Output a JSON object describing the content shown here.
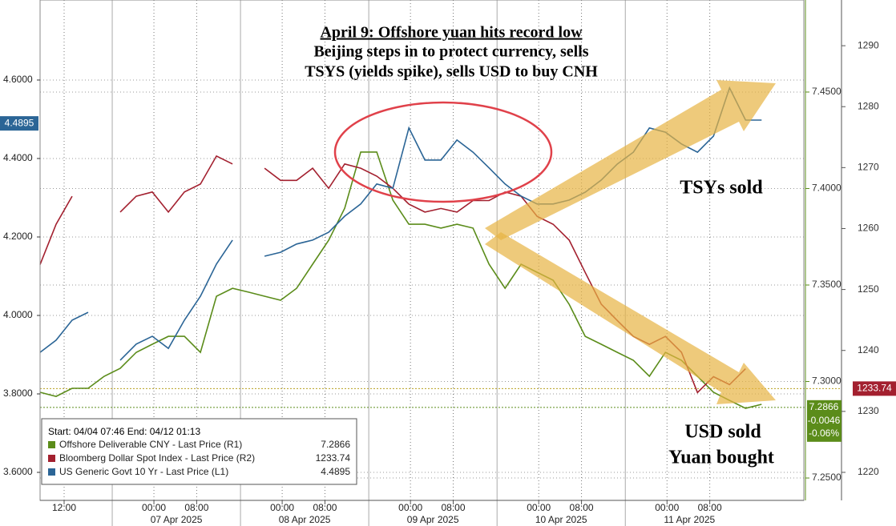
{
  "chart_data": {
    "type": "line",
    "annotations": {
      "title_lines": [
        "April 9: Offshore yuan hits record low",
        "Beijing steps in to protect currency, sells",
        "TSYS (yields spike), sells USD to buy CNH"
      ],
      "tsys": "TSYs sold",
      "usd": "USD sold",
      "yuan": "Yuan bought"
    },
    "legend_header": "Start: 04/04 07:46 End: 04/12 01:13",
    "change": -0.0046,
    "change_pct": {
      "value": -0.06,
      "label": "-0.06%"
    },
    "x": [
      -4.5,
      -1.5,
      1.5,
      4.5,
      7.5,
      10.5,
      13.5,
      16.5,
      19.5,
      22.5,
      25.5,
      28.5,
      31.5,
      34.5,
      37.5,
      40.5,
      43.5,
      46.5,
      49.5,
      52.5,
      55.5,
      58.5,
      61.5,
      64.5,
      67.5,
      70.5,
      73.5,
      76.5,
      79.5,
      82.5,
      85.5,
      88.5,
      91.5,
      94.5,
      97.5,
      100.5,
      103.5,
      106.5,
      109.5,
      112.5,
      115.5,
      118.5,
      121.5,
      124.5,
      127.5,
      130.5
    ],
    "xlim": [
      -4.5,
      138.4
    ],
    "xticks": [
      {
        "value": 0,
        "label": "12:00"
      },
      {
        "value": 16.8,
        "label": "00:00"
      },
      {
        "value": 24.8,
        "label": "08:00"
      },
      {
        "value": 40.8,
        "label": "00:00"
      },
      {
        "value": 48.8,
        "label": "08:00"
      },
      {
        "value": 64.8,
        "label": "00:00"
      },
      {
        "value": 72.8,
        "label": "08:00"
      },
      {
        "value": 88.8,
        "label": "00:00"
      },
      {
        "value": 96.8,
        "label": "08:00"
      },
      {
        "value": 112.8,
        "label": "00:00"
      },
      {
        "value": 120.8,
        "label": "08:00"
      }
    ],
    "dateticks": [
      {
        "value": 21,
        "label": "07 Apr 2025"
      },
      {
        "value": 45,
        "label": "08 Apr 2025"
      },
      {
        "value": 69,
        "label": "09 Apr 2025"
      },
      {
        "value": 93,
        "label": "10 Apr 2025"
      },
      {
        "value": 117,
        "label": "11 Apr 2025"
      }
    ],
    "ylim": [
      3.5286,
      4.804
    ],
    "yticks": [
      {
        "value": 3.6,
        "label": "3.6000"
      },
      {
        "value": 3.8,
        "label": "3.8000"
      },
      {
        "value": 4.0,
        "label": "4.0000"
      },
      {
        "value": 4.2,
        "label": "4.2000"
      },
      {
        "value": 4.4,
        "label": "4.4000"
      },
      {
        "value": 4.6,
        "label": "4.6000"
      }
    ],
    "y2lim": [
      7.2384,
      7.4977
    ],
    "y2ticks": [
      {
        "value": 7.25,
        "label": "7.2500"
      },
      {
        "value": 7.3,
        "label": "7.3000"
      },
      {
        "value": 7.35,
        "label": "7.3500"
      },
      {
        "value": 7.4,
        "label": "7.4000"
      },
      {
        "value": 7.45,
        "label": "7.4500"
      }
    ],
    "y3lim": [
      1215.4,
      1297.5
    ],
    "y3ticks": [
      1220,
      1230,
      1240,
      1250,
      1260,
      1270,
      1280,
      1290
    ],
    "grid": true,
    "series": [
      {
        "name": "Offshore Deliverable CNY - Last Price (R1)",
        "color": "#5b8c1a",
        "axis": "y2",
        "last": 7.2866,
        "values": [
          7.2944,
          7.2923,
          7.2965,
          7.2965,
          7.3027,
          7.3068,
          7.3151,
          7.3193,
          7.3234,
          7.3234,
          7.3151,
          7.3442,
          7.3483,
          7.3463,
          7.3442,
          7.3421,
          7.3483,
          7.3608,
          7.3732,
          7.3898,
          7.4189,
          7.4189,
          7.394,
          7.3815,
          7.3815,
          7.3795,
          7.3815,
          7.3795,
          7.3608,
          7.3483,
          7.3608,
          7.3566,
          7.3525,
          7.34,
          7.3234,
          7.3193,
          7.3151,
          7.311,
          7.3027,
          7.3151,
          7.311,
          7.3027,
          7.2944,
          7.2902,
          7.2861,
          7.2882
        ]
      },
      {
        "name": "Bloomberg Dollar Spot Index - Last Price (R2)",
        "color": "#a3202f",
        "axis": "y3",
        "last": 1233.74,
        "values": [
          1254.1,
          1260.7,
          1265.3,
          null,
          null,
          1262.7,
          1265.3,
          1266.0,
          1262.7,
          1266.0,
          1267.3,
          1271.9,
          1270.6,
          null,
          1269.9,
          1267.9,
          1267.9,
          1269.9,
          1266.6,
          1270.6,
          1269.9,
          1268.6,
          1266.6,
          1264.0,
          1262.7,
          1263.3,
          1262.7,
          1264.6,
          1264.6,
          1266.0,
          1265.3,
          1262.0,
          1260.7,
          1258.1,
          1252.8,
          1247.6,
          1244.9,
          1242.3,
          1241.0,
          1242.3,
          1239.7,
          1233.1,
          1235.7,
          1234.4,
          1237.0,
          null
        ]
      },
      {
        "name": "US Generic Govt 10 Yr - Last Price (L1)",
        "color": "#2b6596",
        "axis": "y",
        "last": 4.4895,
        "values": [
          3.906,
          3.937,
          3.988,
          4.008,
          null,
          3.886,
          3.927,
          3.947,
          3.916,
          3.988,
          4.049,
          4.131,
          4.192,
          null,
          4.151,
          4.161,
          4.182,
          4.192,
          4.212,
          4.253,
          4.284,
          4.335,
          4.324,
          4.478,
          4.396,
          4.396,
          4.447,
          4.416,
          4.376,
          4.335,
          4.304,
          4.284,
          4.284,
          4.294,
          4.314,
          4.345,
          4.386,
          4.416,
          4.478,
          4.467,
          4.437,
          4.416,
          4.457,
          4.58,
          4.498,
          4.498
        ]
      }
    ]
  }
}
